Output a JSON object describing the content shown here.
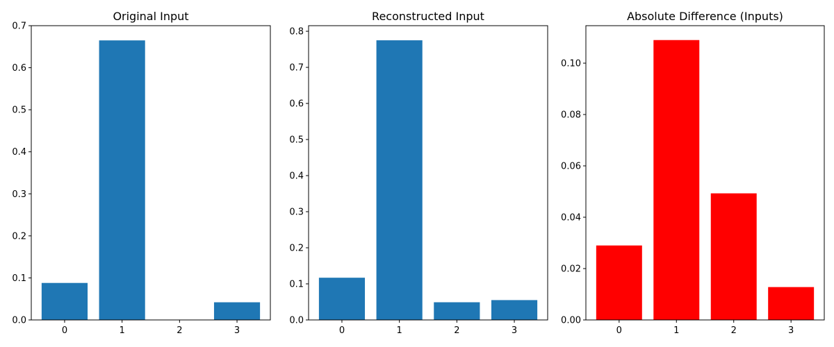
{
  "chart_data": [
    {
      "type": "bar",
      "title": "Original Input",
      "categories": [
        "0",
        "1",
        "2",
        "3"
      ],
      "values": [
        0.088,
        0.665,
        0.0,
        0.042
      ],
      "ylim": [
        0,
        0.7
      ],
      "yticks": [
        0.0,
        0.1,
        0.2,
        0.3,
        0.4,
        0.5,
        0.6,
        0.7
      ],
      "ytick_labels": [
        "0.0",
        "0.1",
        "0.2",
        "0.3",
        "0.4",
        "0.5",
        "0.6",
        "0.7"
      ],
      "color": "#1f77b4",
      "xlabel": "",
      "ylabel": "",
      "grid": false
    },
    {
      "type": "bar",
      "title": "Reconstructed Input",
      "categories": [
        "0",
        "1",
        "2",
        "3"
      ],
      "values": [
        0.117,
        0.775,
        0.049,
        0.055
      ],
      "ylim": [
        0,
        0.8155
      ],
      "yticks": [
        0.0,
        0.1,
        0.2,
        0.3,
        0.4,
        0.5,
        0.6,
        0.7,
        0.8
      ],
      "ytick_labels": [
        "0.0",
        "0.1",
        "0.2",
        "0.3",
        "0.4",
        "0.5",
        "0.6",
        "0.7",
        "0.8"
      ],
      "color": "#1f77b4",
      "xlabel": "",
      "ylabel": "",
      "grid": false
    },
    {
      "type": "bar",
      "title": "Absolute Difference (Inputs)",
      "categories": [
        "0",
        "1",
        "2",
        "3"
      ],
      "values": [
        0.029,
        0.109,
        0.0493,
        0.0128
      ],
      "ylim": [
        0,
        0.1146
      ],
      "yticks": [
        0.0,
        0.02,
        0.04,
        0.06,
        0.08,
        0.1
      ],
      "ytick_labels": [
        "0.00",
        "0.02",
        "0.04",
        "0.06",
        "0.08",
        "0.10"
      ],
      "color": "#ff0000",
      "xlabel": "",
      "ylabel": "",
      "grid": false
    }
  ]
}
